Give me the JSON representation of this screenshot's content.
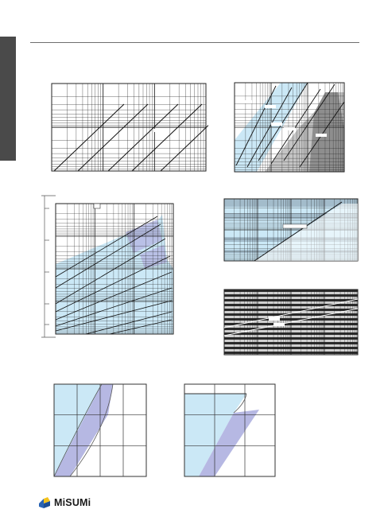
{
  "brand": {
    "name": "MiSUMi",
    "colors": {
      "mark_blue": "#2a64b4",
      "mark_yellow": "#f4c21b",
      "text": "#1a1a1a"
    }
  },
  "palette": {
    "band_light": "#cbe8f6",
    "band_lavender": "#b6b8e3",
    "band_gray": "#8e8e8e",
    "band_gray_light": "#c4c4c4",
    "line": "#111111",
    "sidebar": "#4a4a4a",
    "rule": "#6e6e6e"
  },
  "charts": [
    {
      "id": "chart-1",
      "scale": "log-log",
      "style": "plain",
      "lines": 5,
      "shaded": false
    },
    {
      "id": "chart-2",
      "scale": "log-log",
      "style": "shaded-bands",
      "lines": 6,
      "shaded": true
    },
    {
      "id": "chart-3",
      "scale": "log-log",
      "style": "multi-band",
      "lines": 9,
      "shaded": true
    },
    {
      "id": "chart-4",
      "scale": "log-log",
      "style": "shaded-rows",
      "lines": 1,
      "shaded": true
    },
    {
      "id": "chart-5",
      "scale": "log-log",
      "style": "dark-rows",
      "lines": 2,
      "shaded": true
    },
    {
      "id": "chart-6",
      "scale": "linear",
      "style": "region",
      "lines": 0,
      "shaded": true
    },
    {
      "id": "chart-7",
      "scale": "linear",
      "style": "region",
      "lines": 0,
      "shaded": true
    }
  ]
}
